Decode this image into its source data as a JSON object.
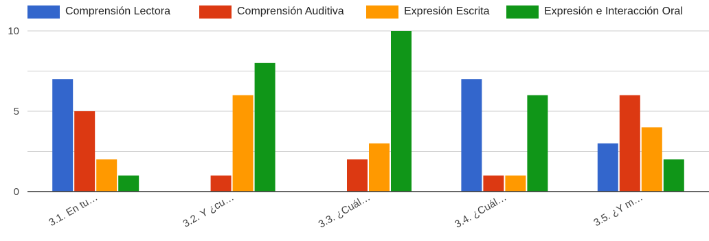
{
  "chart_data": {
    "type": "bar",
    "title": "",
    "xlabel": "",
    "ylabel": "",
    "categories": [
      "3.1. En tu…",
      "3.2. Y ¿cu…",
      "3.3. ¿Cuál…",
      "3.4. ¿Cuál…",
      "3.5. ¿Y m…"
    ],
    "series": [
      {
        "name": "Comprensión Lectora",
        "color": "#3366cc",
        "values": [
          7,
          0,
          0,
          7,
          3
        ]
      },
      {
        "name": "Comprensión Auditiva",
        "color": "#dc3912",
        "values": [
          5,
          1,
          2,
          1,
          6
        ]
      },
      {
        "name": "Expresión Escrita",
        "color": "#ff9900",
        "values": [
          2,
          6,
          3,
          1,
          4
        ]
      },
      {
        "name": "Expresión e Interacción Oral",
        "color": "#109618",
        "values": [
          1,
          8,
          10,
          6,
          2
        ]
      }
    ],
    "ylim": [
      0,
      10
    ],
    "yticks": [
      0,
      5,
      10
    ],
    "grid": true,
    "legend_position": "top"
  }
}
